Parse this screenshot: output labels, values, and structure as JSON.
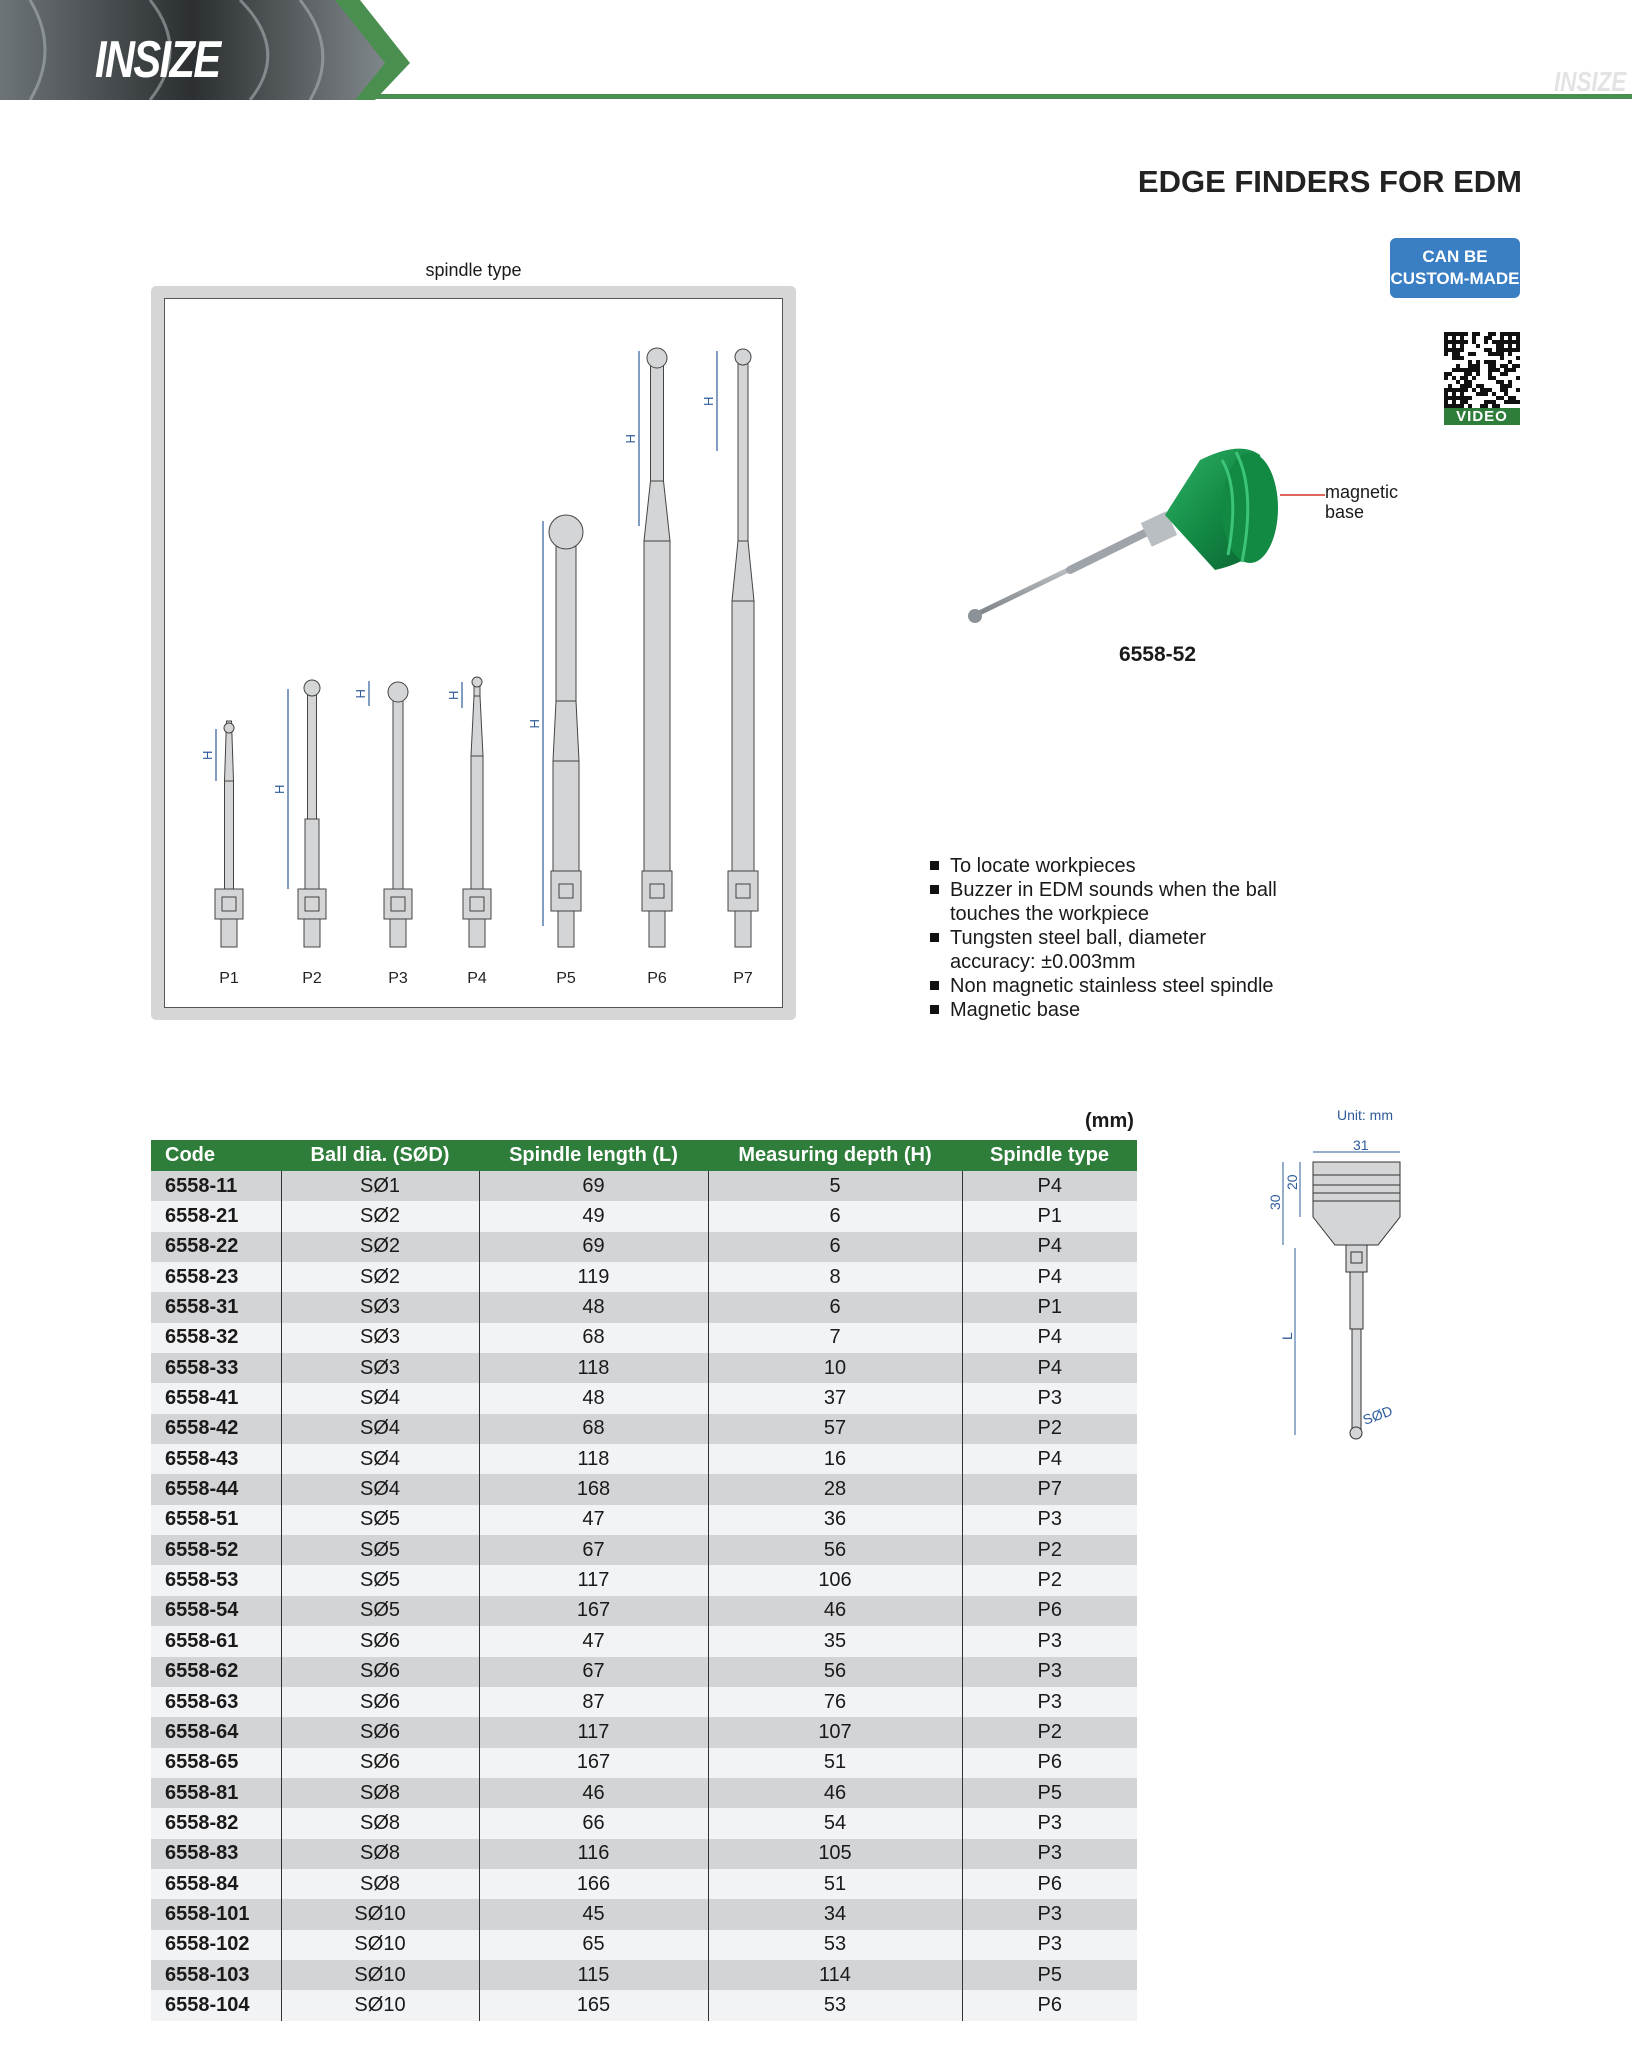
{
  "header": {
    "logo": "INSIZE",
    "watermark": "INSIZE",
    "brand_color": "#4a8f50"
  },
  "title": "EDGE FINDERS FOR EDM",
  "badge": {
    "line1": "CAN BE",
    "line2": "CUSTOM-MADE",
    "color": "#3a7fc4"
  },
  "qr": {
    "label": "VIDEO"
  },
  "spindle_panel": {
    "label": "spindle type",
    "types": [
      "P1",
      "P2",
      "P3",
      "P4",
      "P5",
      "P6",
      "P7"
    ],
    "dimension_label": "H"
  },
  "product": {
    "callout": "magnetic base",
    "callout_line1": "magnetic",
    "callout_line2": "base",
    "code": "6558-52",
    "base_color": "#1e9a4a"
  },
  "features": [
    "To locate workpieces",
    "Buzzer in EDM sounds when the ball touches the workpiece",
    "Tungsten steel ball, diameter accuracy: ±0.003mm",
    "Non magnetic stainless steel spindle",
    "Magnetic base"
  ],
  "table": {
    "unit": "(mm)",
    "headers": [
      "Code",
      "Ball dia. (SØD)",
      "Spindle length (L)",
      "Measuring depth (H)",
      "Spindle type"
    ],
    "rows": [
      [
        "6558-11",
        "SØ1",
        "69",
        "5",
        "P4"
      ],
      [
        "6558-21",
        "SØ2",
        "49",
        "6",
        "P1"
      ],
      [
        "6558-22",
        "SØ2",
        "69",
        "6",
        "P4"
      ],
      [
        "6558-23",
        "SØ2",
        "119",
        "8",
        "P4"
      ],
      [
        "6558-31",
        "SØ3",
        "48",
        "6",
        "P1"
      ],
      [
        "6558-32",
        "SØ3",
        "68",
        "7",
        "P4"
      ],
      [
        "6558-33",
        "SØ3",
        "118",
        "10",
        "P4"
      ],
      [
        "6558-41",
        "SØ4",
        "48",
        "37",
        "P3"
      ],
      [
        "6558-42",
        "SØ4",
        "68",
        "57",
        "P2"
      ],
      [
        "6558-43",
        "SØ4",
        "118",
        "16",
        "P4"
      ],
      [
        "6558-44",
        "SØ4",
        "168",
        "28",
        "P7"
      ],
      [
        "6558-51",
        "SØ5",
        "47",
        "36",
        "P3"
      ],
      [
        "6558-52",
        "SØ5",
        "67",
        "56",
        "P2"
      ],
      [
        "6558-53",
        "SØ5",
        "117",
        "106",
        "P2"
      ],
      [
        "6558-54",
        "SØ5",
        "167",
        "46",
        "P6"
      ],
      [
        "6558-61",
        "SØ6",
        "47",
        "35",
        "P3"
      ],
      [
        "6558-62",
        "SØ6",
        "67",
        "56",
        "P3"
      ],
      [
        "6558-63",
        "SØ6",
        "87",
        "76",
        "P3"
      ],
      [
        "6558-64",
        "SØ6",
        "117",
        "107",
        "P2"
      ],
      [
        "6558-65",
        "SØ6",
        "167",
        "51",
        "P6"
      ],
      [
        "6558-81",
        "SØ8",
        "46",
        "46",
        "P5"
      ],
      [
        "6558-82",
        "SØ8",
        "66",
        "54",
        "P3"
      ],
      [
        "6558-83",
        "SØ8",
        "116",
        "105",
        "P3"
      ],
      [
        "6558-84",
        "SØ8",
        "166",
        "51",
        "P6"
      ],
      [
        "6558-101",
        "SØ10",
        "45",
        "34",
        "P3"
      ],
      [
        "6558-102",
        "SØ10",
        "65",
        "53",
        "P3"
      ],
      [
        "6558-103",
        "SØ10",
        "115",
        "114",
        "P5"
      ],
      [
        "6558-104",
        "SØ10",
        "165",
        "53",
        "P6"
      ]
    ]
  },
  "dimension_diagram": {
    "unit": "Unit: mm",
    "width": "31",
    "height_total": "30",
    "height_head": "20",
    "length": "L",
    "ball": "SØD"
  }
}
